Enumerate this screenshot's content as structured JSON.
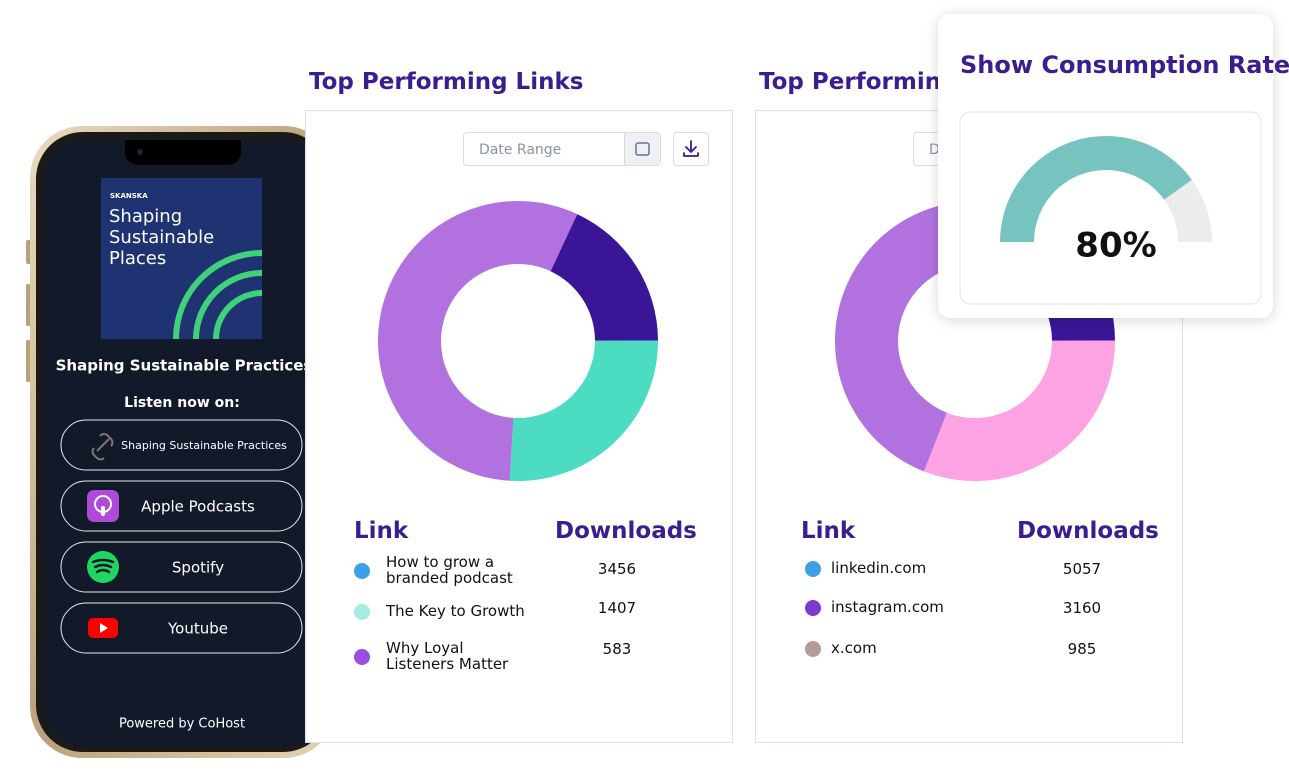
{
  "phone": {
    "art_brand": "SKANSKA",
    "art_title": "Shaping Sustainable Places",
    "show_title": "Shaping Sustainable Practices",
    "listen_label": "Listen now on:",
    "links": [
      "Shaping Sustainable Practices",
      "Apple Podcasts",
      "Spotify",
      "Youtube"
    ],
    "footer": "Powered by CoHost"
  },
  "cards": [
    {
      "title": "Top Performing Links",
      "date_placeholder": "Date Range",
      "table": {
        "headers": [
          "Link",
          "Downloads"
        ],
        "rows": [
          [
            "How to grow a branded podcast",
            3456
          ],
          [
            "The Key to Growth",
            1407
          ],
          [
            "Why Loyal Listeners Matter",
            583
          ]
        ],
        "dot_colors": [
          "#3da0e6",
          "#a6ece0",
          "#9b4ee0"
        ]
      }
    },
    {
      "title": "Top Performing",
      "date_placeholder": "Date Range",
      "table": {
        "headers": [
          "Link",
          "Downloads"
        ],
        "rows": [
          [
            "linkedin.com",
            5057
          ],
          [
            "instagram.com",
            3160
          ],
          [
            "x.com",
            985
          ]
        ],
        "dot_colors": [
          "#3da0e6",
          "#7a3bc9",
          "#b79a98"
        ]
      }
    }
  ],
  "chart_data": [
    {
      "type": "donut",
      "values": [
        18,
        26,
        56
      ],
      "colors": [
        "#3a1597",
        "#4cdcc1",
        "#b172e0"
      ]
    },
    {
      "type": "donut",
      "values": [
        18,
        31,
        51
      ],
      "colors": [
        "#3a1597",
        "#fda2e3",
        "#b172e0"
      ]
    },
    {
      "type": "gauge",
      "title": "Show Consumption Rate",
      "values": [
        80
      ],
      "value_labels": [
        "80%"
      ],
      "ylim": [
        0,
        100
      ],
      "colors": [
        "#76c3c0",
        "#ececec"
      ]
    }
  ]
}
